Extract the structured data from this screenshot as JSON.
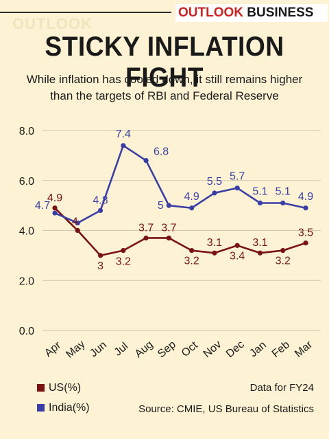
{
  "brand": {
    "ghost": "OUTLOOK",
    "part1": "OUTLOOK",
    "part2": "BUSINESS"
  },
  "headline": "STICKY INFLATION FIGHT",
  "subheadline": "While inflation has cooled down, it still remains higher than the targets of RBI and Federal Reserve",
  "legend": [
    {
      "label": "US(%)",
      "color": "#7a1212"
    },
    {
      "label": "India(%)",
      "color": "#3a3fa6"
    }
  ],
  "note": "Data for FY24",
  "source": "Source: CMIE, US Bureau of Statistics",
  "chart_data": {
    "type": "line",
    "categories": [
      "Apr",
      "May",
      "Jun",
      "Jul",
      "Aug",
      "Sep",
      "Oct",
      "Nov",
      "Dec",
      "Jan",
      "Feb",
      "Mar"
    ],
    "series": [
      {
        "name": "US(%)",
        "color": "#7a1212",
        "values": [
          4.9,
          4,
          3,
          3.2,
          3.7,
          3.7,
          3.2,
          3.1,
          3.4,
          3.1,
          3.2,
          3.5
        ],
        "labels": [
          "4.9",
          "4",
          "3",
          "3.2",
          "3.7",
          "3.7",
          "3.2",
          "3.1",
          "3.4",
          "3.1",
          "3.2",
          "3.5"
        ]
      },
      {
        "name": "India(%)",
        "color": "#3a3fa6",
        "values": [
          4.7,
          4.3,
          4.8,
          7.4,
          6.8,
          5,
          4.9,
          5.5,
          5.7,
          5.1,
          5.1,
          4.9
        ],
        "labels": [
          "4.7",
          "",
          "4.8",
          "7.4",
          "6.8",
          "5",
          "4.9",
          "5.5",
          "5.7",
          "5.1",
          "5.1",
          "4.9"
        ]
      }
    ],
    "yticks": [
      "0.0",
      "2.0",
      "4.0",
      "6.0",
      "8.0"
    ],
    "ylim": [
      0,
      8
    ],
    "grid": true
  }
}
